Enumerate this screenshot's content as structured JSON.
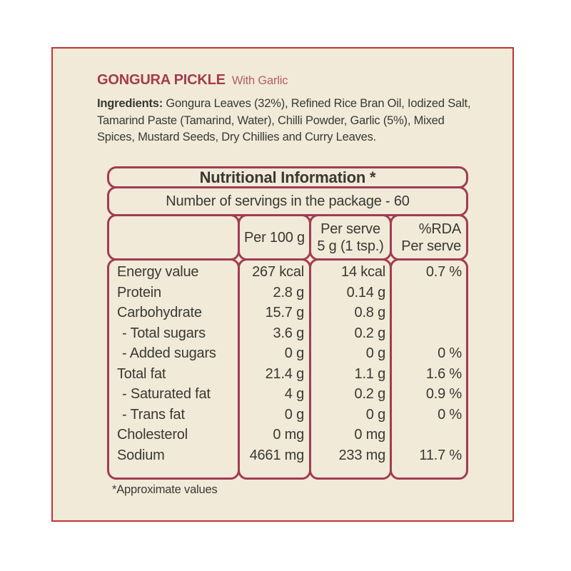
{
  "product": {
    "title": "GONGURA PICKLE",
    "variant": "With Garlic"
  },
  "ingredients": {
    "label": "Ingredients:",
    "line1": "Gongura Leaves (32%), Refined Rice Bran Oil, Iodized Salt,",
    "line2": "Tamarind Paste (Tamarind, Water), Chilli Powder, Garlic (5%), Mixed",
    "line3": "Spices, Mustard Seeds, Dry Chillies and Curry Leaves."
  },
  "nutrition_table": {
    "title": "Nutritional Information *",
    "servings_line": "Number of servings in the package - 60",
    "columns": {
      "per100": "Per 100 g",
      "per_serve_line1": "Per serve",
      "per_serve_line2": "5 g (1 tsp.)",
      "rda_line1": "%RDA",
      "rda_line2": "Per serve"
    },
    "rows": [
      {
        "label": "Energy value",
        "per100": "267 kcal",
        "perServe": "14 kcal",
        "rda": "0.7 %"
      },
      {
        "label": "Protein",
        "per100": "2.8 g",
        "perServe": "0.14 g",
        "rda": ""
      },
      {
        "label": "Carbohydrate",
        "per100": "15.7 g",
        "perServe": "0.8 g",
        "rda": ""
      },
      {
        "label": "- Total sugars",
        "per100": "3.6 g",
        "perServe": "0.2 g",
        "rda": ""
      },
      {
        "label": "- Added sugars",
        "per100": "0 g",
        "perServe": "0 g",
        "rda": "0 %"
      },
      {
        "label": "Total fat",
        "per100": "21.4 g",
        "perServe": "1.1 g",
        "rda": "1.6 %"
      },
      {
        "label": "- Saturated fat",
        "per100": "4 g",
        "perServe": "0.2 g",
        "rda": "0.9 %"
      },
      {
        "label": "- Trans fat",
        "per100": "0 g",
        "perServe": "0 g",
        "rda": "0 %"
      },
      {
        "label": "Cholesterol",
        "per100": "0 mg",
        "perServe": "0 mg",
        "rda": ""
      },
      {
        "label": "Sodium",
        "per100": "4661 mg",
        "perServe": "233 mg",
        "rda": "11.7 %"
      }
    ]
  },
  "footnote": "*Approximate values",
  "colors": {
    "frame_red": "#bf3532",
    "maroon": "#a13c52",
    "title_maroon": "#a23c4f",
    "subtitle_red": "#b56062",
    "cream": "#f1ead8",
    "ink": "#393833"
  }
}
